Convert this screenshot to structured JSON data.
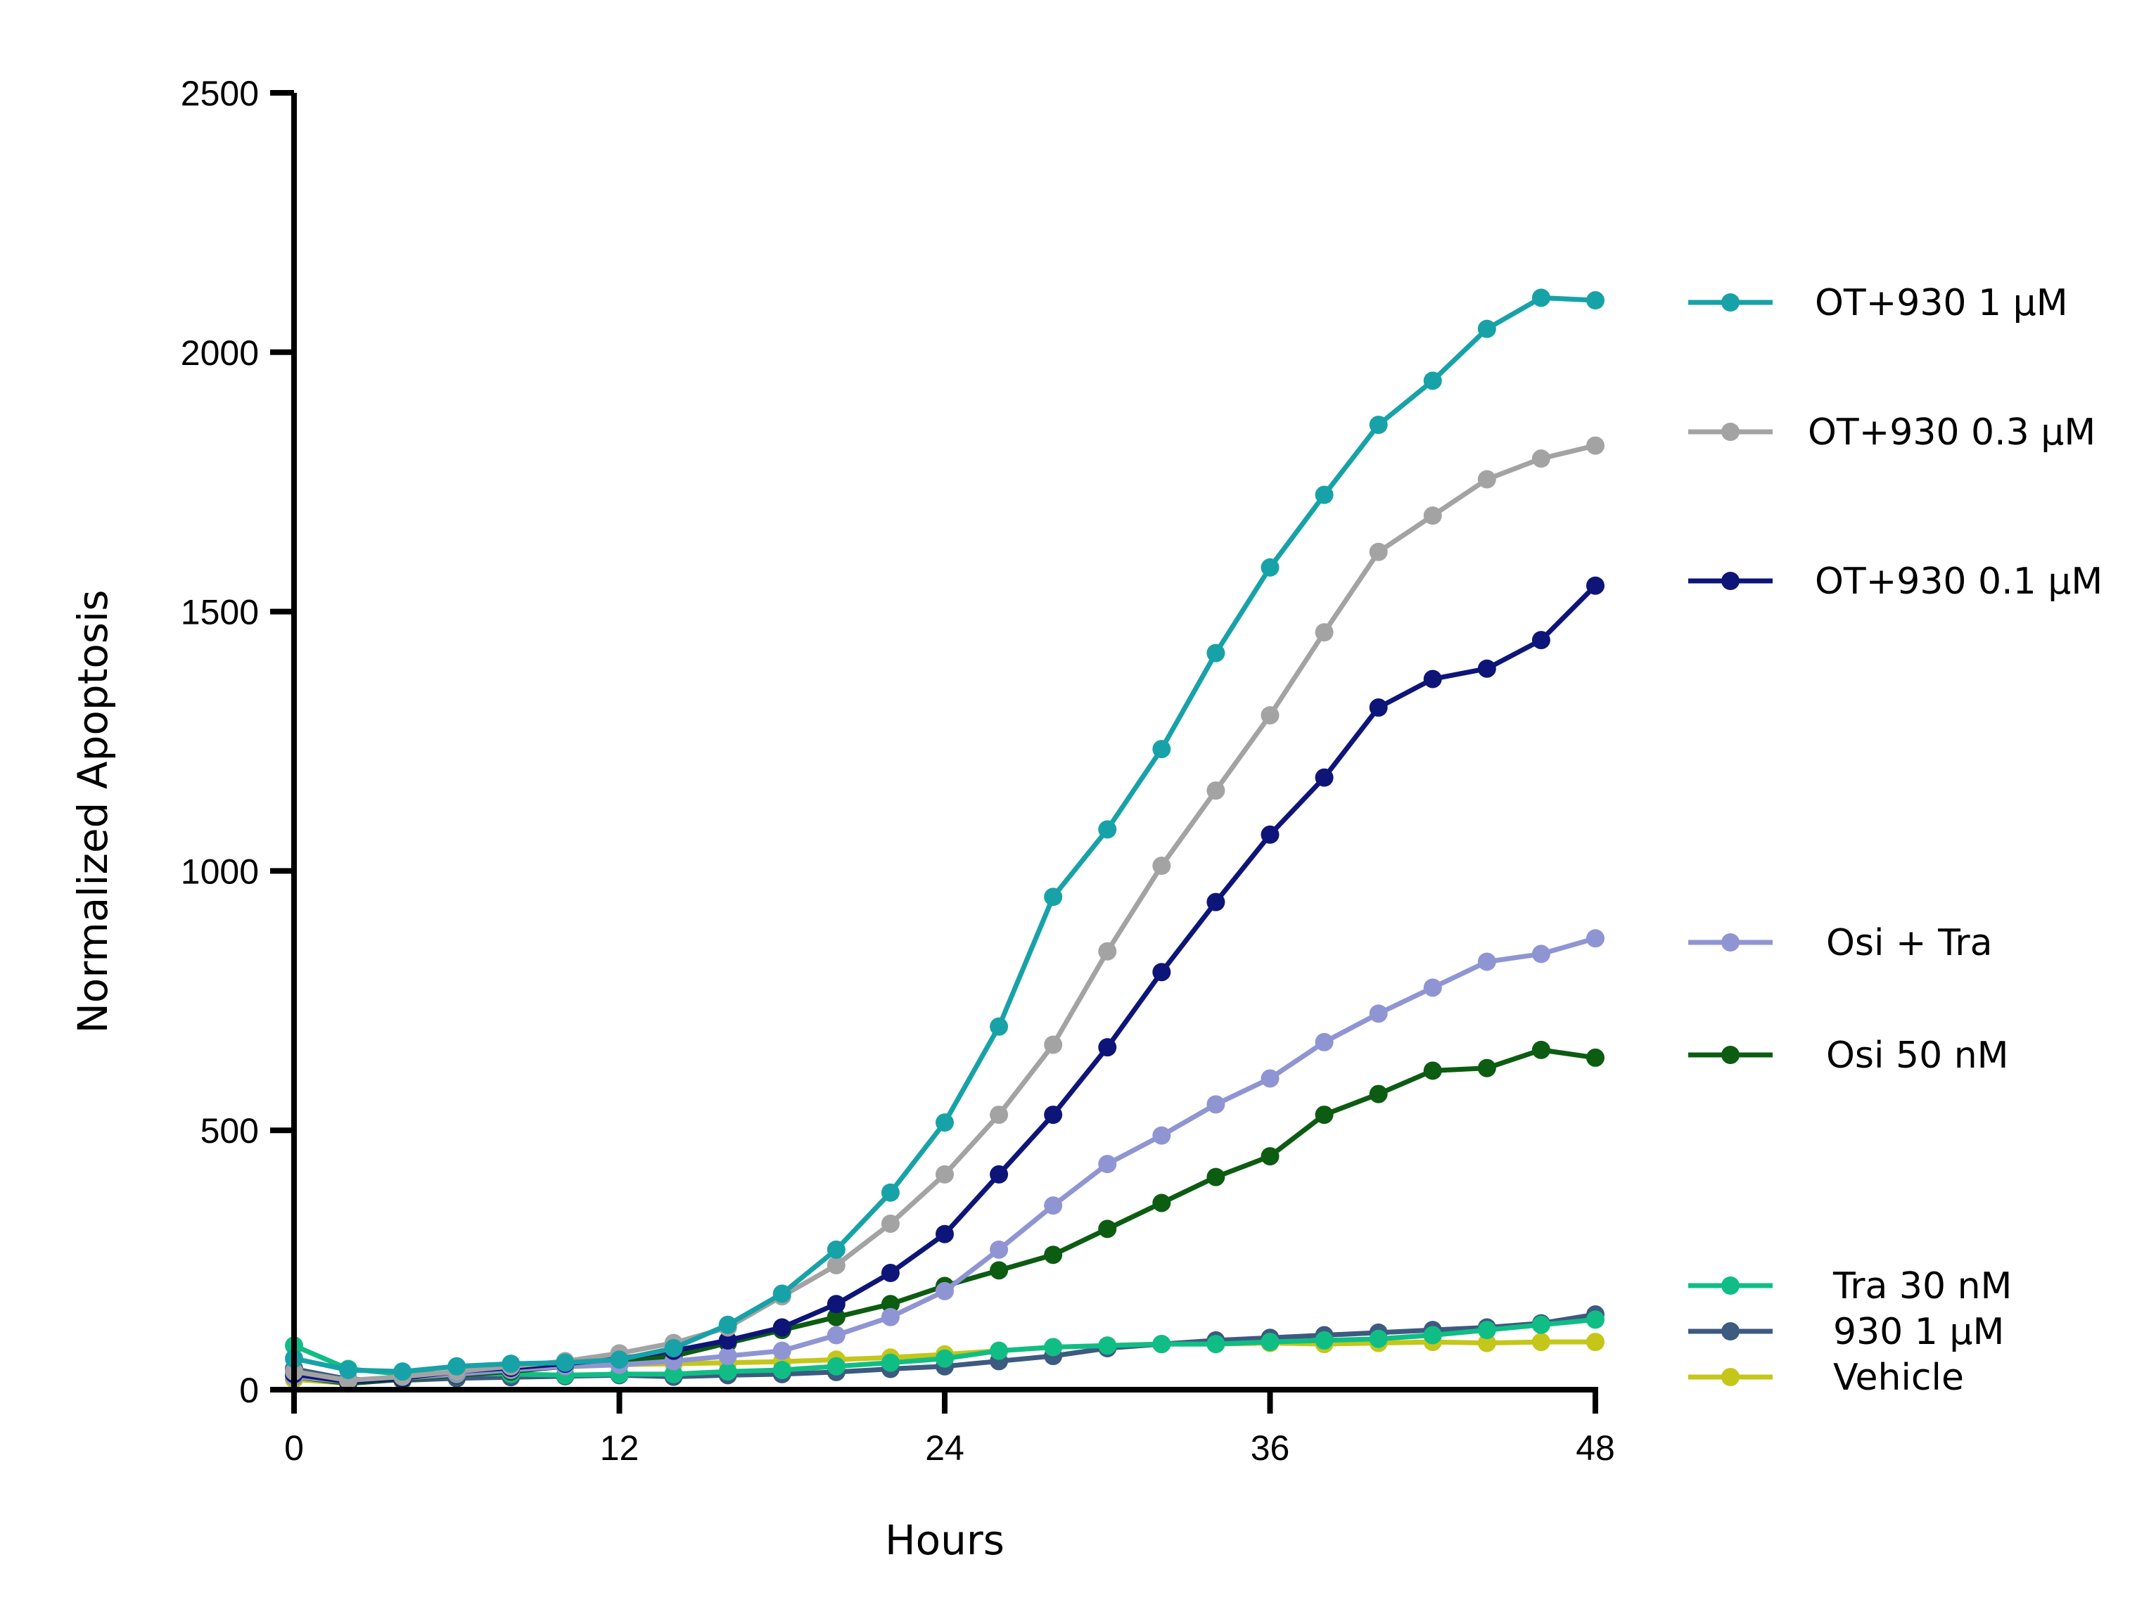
{
  "chart_data": {
    "type": "line",
    "xlabel": "Hours",
    "ylabel": "Normalized Apoptosis",
    "xlim": [
      0,
      48
    ],
    "ylim": [
      0,
      2500
    ],
    "xticks": [
      0,
      12,
      24,
      36,
      48
    ],
    "xtick_labels": [
      "0",
      "12",
      "24",
      "36",
      "48"
    ],
    "yticks": [
      0,
      500,
      1000,
      1500,
      2000,
      2500
    ],
    "ytick_labels": [
      "0",
      "500",
      "1000",
      "1500",
      "2000",
      "2500"
    ],
    "grid": false,
    "legend_position": "right",
    "x": [
      0,
      2,
      4,
      6,
      8,
      10,
      12,
      14,
      16,
      18,
      20,
      22,
      24,
      26,
      28,
      30,
      32,
      34,
      36,
      38,
      40,
      42,
      44,
      46,
      48
    ],
    "series": [
      {
        "name": "OT+930 1 µM",
        "color": "#17a2a8",
        "values": [
          60,
          38,
          35,
          45,
          50,
          52,
          58,
          80,
          125,
          185,
          270,
          380,
          515,
          700,
          950,
          1080,
          1235,
          1420,
          1585,
          1725,
          1860,
          1945,
          2045,
          2105,
          2100
        ]
      },
      {
        "name": "OT+930 0.3 µM",
        "color": "#a3a3a3",
        "values": [
          35,
          18,
          25,
          35,
          45,
          55,
          70,
          90,
          120,
          180,
          240,
          320,
          415,
          530,
          665,
          845,
          1010,
          1155,
          1300,
          1460,
          1615,
          1685,
          1755,
          1795,
          1820
        ]
      },
      {
        "name": "OT+930 0.1 µM",
        "color": "#0e1578",
        "values": [
          30,
          15,
          22,
          35,
          42,
          50,
          60,
          75,
          95,
          120,
          165,
          225,
          300,
          415,
          530,
          660,
          805,
          940,
          1070,
          1180,
          1315,
          1370,
          1390,
          1445,
          1550
        ]
      },
      {
        "name": "Osi + Tra",
        "color": "#8f95d3",
        "values": [
          25,
          15,
          22,
          30,
          38,
          45,
          48,
          55,
          65,
          75,
          105,
          140,
          190,
          270,
          355,
          435,
          490,
          550,
          600,
          670,
          725,
          775,
          825,
          840,
          870
        ]
      },
      {
        "name": "Osi 50 nM",
        "color": "#0c5c12",
        "values": [
          25,
          12,
          20,
          28,
          35,
          45,
          55,
          65,
          90,
          115,
          140,
          165,
          200,
          230,
          260,
          310,
          360,
          410,
          450,
          530,
          570,
          615,
          620,
          655,
          640
        ]
      },
      {
        "name": "Tra 30 nM",
        "color": "#10be85",
        "values": [
          85,
          40,
          30,
          32,
          30,
          28,
          30,
          30,
          35,
          38,
          45,
          52,
          60,
          75,
          82,
          85,
          88,
          88,
          92,
          95,
          98,
          105,
          115,
          125,
          135
        ]
      },
      {
        "name": "930 1 µM",
        "color": "#3d5a80",
        "values": [
          40,
          20,
          18,
          22,
          24,
          26,
          28,
          25,
          28,
          30,
          34,
          40,
          45,
          55,
          65,
          80,
          88,
          95,
          100,
          105,
          110,
          115,
          120,
          128,
          145
        ]
      },
      {
        "name": "Vehicle",
        "color": "#c4c61a",
        "values": [
          20,
          12,
          20,
          30,
          38,
          44,
          48,
          50,
          52,
          54,
          58,
          62,
          68,
          75,
          82,
          85,
          88,
          88,
          90,
          88,
          90,
          92,
          90,
          92,
          92
        ]
      }
    ],
    "legend": [
      {
        "label": "OT+930 1 µM",
        "color": "#17a2a8"
      },
      {
        "label": "OT+930 0.3 µM",
        "color": "#a3a3a3"
      },
      {
        "label": "OT+930 0.1 µM",
        "color": "#0e1578"
      },
      {
        "label": "Osi + Tra",
        "color": "#8f95d3"
      },
      {
        "label": "Osi 50 nM",
        "color": "#0c5c12"
      },
      {
        "label": "Tra 30 nM",
        "color": "#10be85"
      },
      {
        "label": "930 1 µM",
        "color": "#3d5a80"
      },
      {
        "label": "Vehicle",
        "color": "#c4c61a"
      }
    ]
  }
}
